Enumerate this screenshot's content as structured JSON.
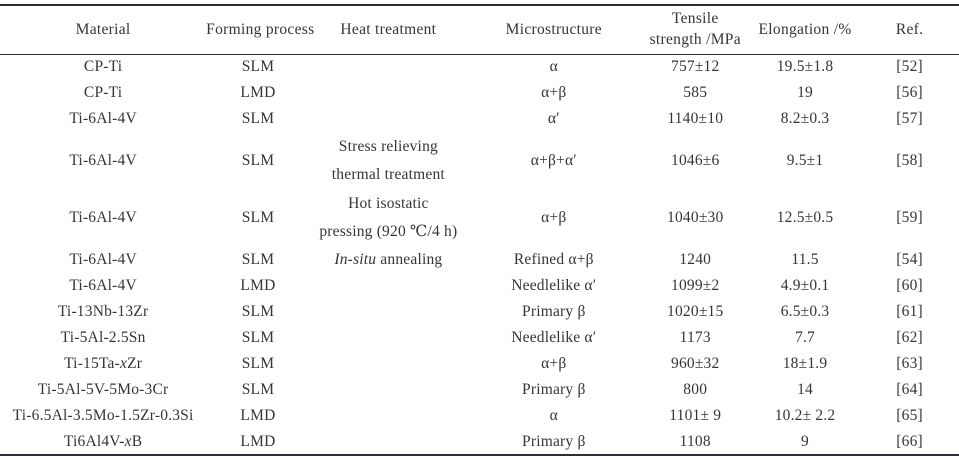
{
  "table": {
    "headers": {
      "material": "Material",
      "process": "Forming process",
      "heat": "Heat treatment",
      "microstructure": "Microstructure",
      "tensile_line1": "Tensile",
      "tensile_line2": "strength /MPa",
      "elongation": "Elongation /%",
      "ref": "Ref."
    },
    "rows": [
      {
        "material": [
          {
            "text": "CP-Ti"
          }
        ],
        "process": "SLM",
        "heat": [],
        "microstructure": "α",
        "tensile": "757±12",
        "elongation": "19.5±1.8",
        "ref": "[52]"
      },
      {
        "material": [
          {
            "text": "CP-Ti"
          }
        ],
        "process": "LMD",
        "heat": [],
        "microstructure": "α+β",
        "tensile": "585",
        "elongation": "19",
        "ref": "[56]"
      },
      {
        "material": [
          {
            "text": "Ti-6Al-4V"
          }
        ],
        "process": "SLM",
        "heat": [],
        "microstructure": "α′",
        "tensile": "1140±10",
        "elongation": "8.2±0.3",
        "ref": "[57]"
      },
      {
        "material": [
          {
            "text": "Ti-6Al-4V"
          }
        ],
        "process": "SLM",
        "heat": [
          [
            {
              "text": "Stress relieving"
            }
          ],
          [
            {
              "text": "thermal treatment"
            }
          ]
        ],
        "microstructure": "α+β+α′",
        "tensile": "1046±6",
        "elongation": "9.5±1",
        "ref": "[58]"
      },
      {
        "material": [
          {
            "text": "Ti-6Al-4V"
          }
        ],
        "process": "SLM",
        "heat": [
          [
            {
              "text": "Hot isostatic"
            }
          ],
          [
            {
              "text": "pressing (920 ℃/4 h)"
            }
          ]
        ],
        "microstructure": "α+β",
        "tensile": "1040±30",
        "elongation": "12.5±0.5",
        "ref": "[59]"
      },
      {
        "material": [
          {
            "text": "Ti-6Al-4V"
          }
        ],
        "process": "SLM",
        "heat": [
          [
            {
              "text": "In-situ",
              "italic": true
            },
            {
              "text": " annealing"
            }
          ]
        ],
        "microstructure": "Refined α+β",
        "tensile": "1240",
        "elongation": "11.5",
        "ref": "[54]"
      },
      {
        "material": [
          {
            "text": "Ti-6Al-4V"
          }
        ],
        "process": "LMD",
        "heat": [],
        "microstructure": "Needlelike α′",
        "tensile": "1099±2",
        "elongation": "4.9±0.1",
        "ref": "[60]"
      },
      {
        "material": [
          {
            "text": "Ti-13Nb-13Zr"
          }
        ],
        "process": "SLM",
        "heat": [],
        "microstructure": "Primary β",
        "tensile": "1020±15",
        "elongation": "6.5±0.3",
        "ref": "[61]"
      },
      {
        "material": [
          {
            "text": "Ti-5Al-2.5Sn"
          }
        ],
        "process": "SLM",
        "heat": [],
        "microstructure": "Needlelike α′",
        "tensile": "1173",
        "elongation": "7.7",
        "ref": "[62]"
      },
      {
        "material": [
          {
            "text": "Ti-15Ta-"
          },
          {
            "text": "x",
            "italic": true
          },
          {
            "text": "Zr"
          }
        ],
        "process": "SLM",
        "heat": [],
        "microstructure": "α+β",
        "tensile": "960±32",
        "elongation": "18±1.9",
        "ref": "[63]"
      },
      {
        "material": [
          {
            "text": "Ti-5Al-5V-5Mo-3Cr"
          }
        ],
        "process": "SLM",
        "heat": [],
        "microstructure": "Primary β",
        "tensile": "800",
        "elongation": "14",
        "ref": "[64]"
      },
      {
        "material": [
          {
            "text": "Ti-6.5Al-3.5Mo-1.5Zr-0.3Si"
          }
        ],
        "process": "LMD",
        "heat": [],
        "microstructure": "α",
        "tensile": "1101± 9",
        "elongation": "10.2± 2.2",
        "ref": "[65]"
      },
      {
        "material": [
          {
            "text": "Ti6Al4V-"
          },
          {
            "text": "x",
            "italic": true
          },
          {
            "text": "B"
          }
        ],
        "process": "LMD",
        "heat": [],
        "microstructure": "Primary β",
        "tensile": "1108",
        "elongation": "9",
        "ref": "[66]"
      }
    ]
  }
}
